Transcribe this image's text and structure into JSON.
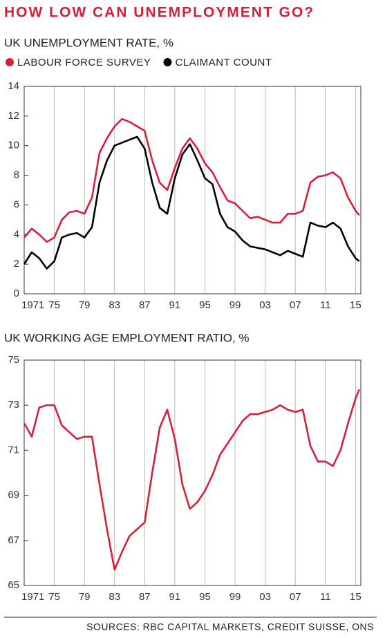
{
  "title": "HOW LOW CAN UNEMPLOYMENT GO?",
  "source": "SOURCES: RBC CAPITAL MARKETS, CREDIT SUISSE, ONS",
  "chart_data": [
    {
      "type": "line",
      "title": "UK UNEMPLOYMENT RATE, %",
      "x": [
        1971,
        1972,
        1973,
        1974,
        1975,
        1976,
        1977,
        1978,
        1979,
        1980,
        1981,
        1982,
        1983,
        1984,
        1985,
        1986,
        1987,
        1988,
        1989,
        1990,
        1991,
        1992,
        1993,
        1994,
        1995,
        1996,
        1997,
        1998,
        1999,
        2000,
        2001,
        2002,
        2003,
        2004,
        2005,
        2006,
        2007,
        2008,
        2009,
        2010,
        2011,
        2012,
        2013,
        2014,
        2015,
        2015.5
      ],
      "series": [
        {
          "name": "LABOUR FORCE SURVEY",
          "color": "#d71f3a",
          "values": [
            3.8,
            4.4,
            4.0,
            3.5,
            3.8,
            5.0,
            5.5,
            5.6,
            5.4,
            6.5,
            9.5,
            10.5,
            11.3,
            11.8,
            11.6,
            11.3,
            11.0,
            9.0,
            7.5,
            7.0,
            8.5,
            9.8,
            10.5,
            9.8,
            8.8,
            8.2,
            7.2,
            6.3,
            6.1,
            5.6,
            5.1,
            5.2,
            5.0,
            4.8,
            4.8,
            5.4,
            5.4,
            5.6,
            7.5,
            7.9,
            8.0,
            8.2,
            7.8,
            6.5,
            5.6,
            5.3
          ]
        },
        {
          "name": "CLAIMANT COUNT",
          "color": "#000000",
          "values": [
            2.0,
            2.8,
            2.4,
            1.7,
            2.2,
            3.8,
            4.0,
            4.1,
            3.8,
            4.5,
            7.5,
            9.0,
            10.0,
            10.2,
            10.4,
            10.6,
            9.8,
            7.5,
            5.8,
            5.4,
            7.8,
            9.4,
            10.1,
            9.0,
            7.8,
            7.4,
            5.4,
            4.5,
            4.2,
            3.6,
            3.2,
            3.1,
            3.0,
            2.8,
            2.6,
            2.9,
            2.7,
            2.5,
            4.8,
            4.6,
            4.5,
            4.8,
            4.4,
            3.2,
            2.4,
            2.2
          ]
        }
      ],
      "xlim": [
        1971,
        2015.7
      ],
      "xticks": [
        1971,
        {
          "value": 1975,
          "label": "75"
        },
        {
          "value": 1979,
          "label": "79"
        },
        {
          "value": 1983,
          "label": "83"
        },
        {
          "value": 1987,
          "label": "87"
        },
        {
          "value": 1991,
          "label": "91"
        },
        {
          "value": 1995,
          "label": "95"
        },
        {
          "value": 1999,
          "label": "99"
        },
        {
          "value": 2003,
          "label": "03"
        },
        {
          "value": 2007,
          "label": "07"
        },
        {
          "value": 2011,
          "label": "11"
        },
        {
          "value": 2015,
          "label": "15"
        }
      ],
      "ylim": [
        0,
        14
      ],
      "yticks": [
        0,
        2,
        4,
        6,
        8,
        10,
        12,
        14
      ],
      "xgrid": true
    },
    {
      "type": "line",
      "title": "UK WORKING AGE EMPLOYMENT RATIO, %",
      "x": [
        1971,
        1972,
        1973,
        1974,
        1975,
        1976,
        1977,
        1978,
        1979,
        1980,
        1981,
        1982,
        1983,
        1984,
        1985,
        1986,
        1987,
        1988,
        1989,
        1990,
        1991,
        1992,
        1993,
        1994,
        1995,
        1996,
        1997,
        1998,
        1999,
        2000,
        2001,
        2002,
        2003,
        2004,
        2005,
        2006,
        2007,
        2008,
        2009,
        2010,
        2011,
        2012,
        2013,
        2014,
        2015,
        2015.5
      ],
      "color": "#d71f3a",
      "values": [
        72.2,
        71.6,
        72.9,
        73.0,
        73.0,
        72.1,
        71.8,
        71.5,
        71.6,
        71.6,
        69.5,
        67.5,
        65.7,
        66.5,
        67.2,
        67.5,
        67.8,
        70.0,
        72.0,
        72.8,
        71.5,
        69.5,
        68.4,
        68.7,
        69.2,
        69.9,
        70.8,
        71.3,
        71.8,
        72.3,
        72.6,
        72.6,
        72.7,
        72.8,
        73.0,
        72.8,
        72.7,
        72.8,
        71.2,
        70.5,
        70.5,
        70.3,
        71.0,
        72.2,
        73.3,
        73.7
      ],
      "xlim": [
        1971,
        2015.7
      ],
      "xticks": [
        1971,
        {
          "value": 1975,
          "label": "75"
        },
        {
          "value": 1979,
          "label": "79"
        },
        {
          "value": 1983,
          "label": "83"
        },
        {
          "value": 1987,
          "label": "87"
        },
        {
          "value": 1991,
          "label": "91"
        },
        {
          "value": 1995,
          "label": "95"
        },
        {
          "value": 1999,
          "label": "99"
        },
        {
          "value": 2003,
          "label": "03"
        },
        {
          "value": 2007,
          "label": "07"
        },
        {
          "value": 2011,
          "label": "11"
        },
        {
          "value": 2015,
          "label": "15"
        }
      ],
      "ylim": [
        65,
        75
      ],
      "yticks": [
        65,
        67,
        69,
        71,
        73,
        75
      ],
      "xgrid": true
    }
  ]
}
